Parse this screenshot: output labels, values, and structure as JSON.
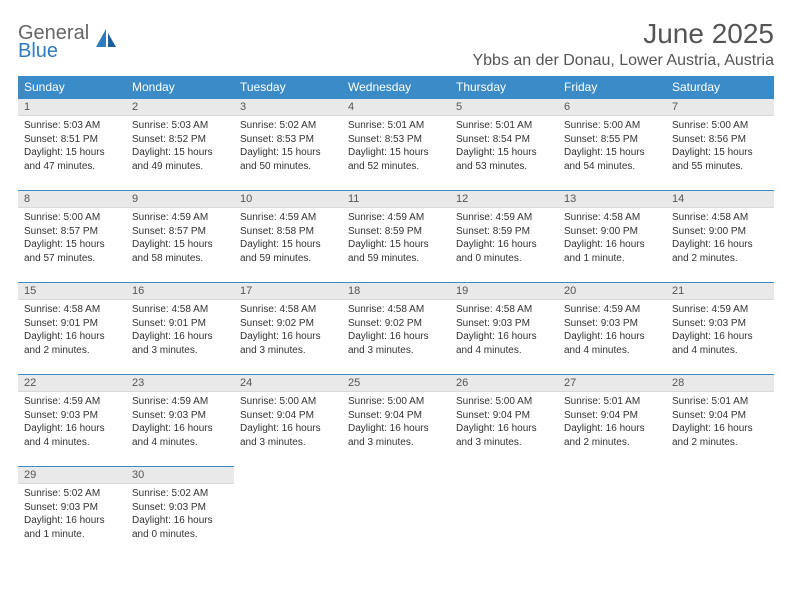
{
  "brand": {
    "general": "General",
    "blue": "Blue"
  },
  "title": "June 2025",
  "location": "Ybbs an der Donau, Lower Austria, Austria",
  "colors": {
    "header_bg": "#3b8bc8",
    "header_text": "#ffffff",
    "rule": "#3b8bc8",
    "daynum_bg": "#e9e9e9",
    "text": "#333333",
    "brand_blue": "#2f7bbf"
  },
  "day_labels": [
    "Sunday",
    "Monday",
    "Tuesday",
    "Wednesday",
    "Thursday",
    "Friday",
    "Saturday"
  ],
  "weeks": [
    [
      {
        "n": "1",
        "sr": "5:03 AM",
        "ss": "8:51 PM",
        "dl": "15 hours and 47 minutes."
      },
      {
        "n": "2",
        "sr": "5:03 AM",
        "ss": "8:52 PM",
        "dl": "15 hours and 49 minutes."
      },
      {
        "n": "3",
        "sr": "5:02 AM",
        "ss": "8:53 PM",
        "dl": "15 hours and 50 minutes."
      },
      {
        "n": "4",
        "sr": "5:01 AM",
        "ss": "8:53 PM",
        "dl": "15 hours and 52 minutes."
      },
      {
        "n": "5",
        "sr": "5:01 AM",
        "ss": "8:54 PM",
        "dl": "15 hours and 53 minutes."
      },
      {
        "n": "6",
        "sr": "5:00 AM",
        "ss": "8:55 PM",
        "dl": "15 hours and 54 minutes."
      },
      {
        "n": "7",
        "sr": "5:00 AM",
        "ss": "8:56 PM",
        "dl": "15 hours and 55 minutes."
      }
    ],
    [
      {
        "n": "8",
        "sr": "5:00 AM",
        "ss": "8:57 PM",
        "dl": "15 hours and 57 minutes."
      },
      {
        "n": "9",
        "sr": "4:59 AM",
        "ss": "8:57 PM",
        "dl": "15 hours and 58 minutes."
      },
      {
        "n": "10",
        "sr": "4:59 AM",
        "ss": "8:58 PM",
        "dl": "15 hours and 59 minutes."
      },
      {
        "n": "11",
        "sr": "4:59 AM",
        "ss": "8:59 PM",
        "dl": "15 hours and 59 minutes."
      },
      {
        "n": "12",
        "sr": "4:59 AM",
        "ss": "8:59 PM",
        "dl": "16 hours and 0 minutes."
      },
      {
        "n": "13",
        "sr": "4:58 AM",
        "ss": "9:00 PM",
        "dl": "16 hours and 1 minute."
      },
      {
        "n": "14",
        "sr": "4:58 AM",
        "ss": "9:00 PM",
        "dl": "16 hours and 2 minutes."
      }
    ],
    [
      {
        "n": "15",
        "sr": "4:58 AM",
        "ss": "9:01 PM",
        "dl": "16 hours and 2 minutes."
      },
      {
        "n": "16",
        "sr": "4:58 AM",
        "ss": "9:01 PM",
        "dl": "16 hours and 3 minutes."
      },
      {
        "n": "17",
        "sr": "4:58 AM",
        "ss": "9:02 PM",
        "dl": "16 hours and 3 minutes."
      },
      {
        "n": "18",
        "sr": "4:58 AM",
        "ss": "9:02 PM",
        "dl": "16 hours and 3 minutes."
      },
      {
        "n": "19",
        "sr": "4:58 AM",
        "ss": "9:03 PM",
        "dl": "16 hours and 4 minutes."
      },
      {
        "n": "20",
        "sr": "4:59 AM",
        "ss": "9:03 PM",
        "dl": "16 hours and 4 minutes."
      },
      {
        "n": "21",
        "sr": "4:59 AM",
        "ss": "9:03 PM",
        "dl": "16 hours and 4 minutes."
      }
    ],
    [
      {
        "n": "22",
        "sr": "4:59 AM",
        "ss": "9:03 PM",
        "dl": "16 hours and 4 minutes."
      },
      {
        "n": "23",
        "sr": "4:59 AM",
        "ss": "9:03 PM",
        "dl": "16 hours and 4 minutes."
      },
      {
        "n": "24",
        "sr": "5:00 AM",
        "ss": "9:04 PM",
        "dl": "16 hours and 3 minutes."
      },
      {
        "n": "25",
        "sr": "5:00 AM",
        "ss": "9:04 PM",
        "dl": "16 hours and 3 minutes."
      },
      {
        "n": "26",
        "sr": "5:00 AM",
        "ss": "9:04 PM",
        "dl": "16 hours and 3 minutes."
      },
      {
        "n": "27",
        "sr": "5:01 AM",
        "ss": "9:04 PM",
        "dl": "16 hours and 2 minutes."
      },
      {
        "n": "28",
        "sr": "5:01 AM",
        "ss": "9:04 PM",
        "dl": "16 hours and 2 minutes."
      }
    ],
    [
      {
        "n": "29",
        "sr": "5:02 AM",
        "ss": "9:03 PM",
        "dl": "16 hours and 1 minute."
      },
      {
        "n": "30",
        "sr": "5:02 AM",
        "ss": "9:03 PM",
        "dl": "16 hours and 0 minutes."
      },
      null,
      null,
      null,
      null,
      null
    ]
  ],
  "labels": {
    "sunrise": "Sunrise:",
    "sunset": "Sunset:",
    "daylight": "Daylight:"
  }
}
